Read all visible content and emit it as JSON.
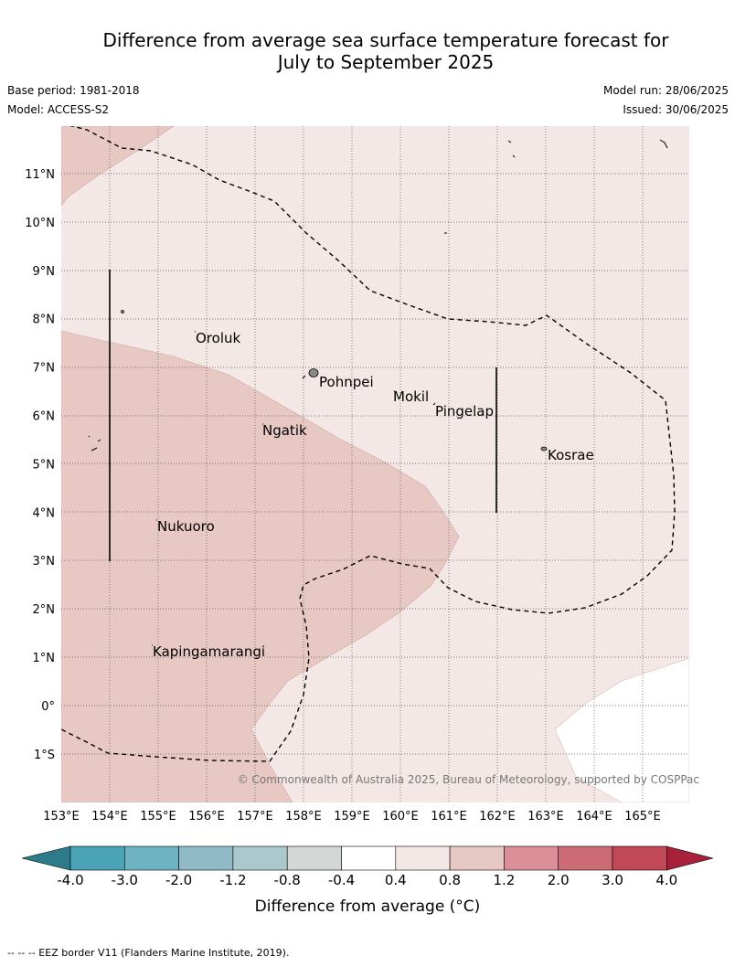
{
  "title": {
    "line1": "Difference from average sea surface temperature forecast for",
    "line2": "July to September 2025"
  },
  "meta": {
    "base_period": "Base period: 1981-2018",
    "model": "Model: ACCESS-S2",
    "model_run": "Model run: 28/06/2025",
    "issued": "Issued: 30/06/2025"
  },
  "map": {
    "lat_labels": [
      "11°N",
      "10°N",
      "9°N",
      "8°N",
      "7°N",
      "6°N",
      "5°N",
      "4°N",
      "3°N",
      "2°N",
      "1°N",
      "0°",
      "1°S"
    ],
    "lon_labels": [
      "153°E",
      "154°E",
      "155°E",
      "156°E",
      "157°E",
      "158°E",
      "159°E",
      "160°E",
      "161°E",
      "162°E",
      "163°E",
      "164°E",
      "165°E"
    ],
    "places": [
      {
        "name": "Oroluk",
        "lon": 155.8,
        "lat": 7.6
      },
      {
        "name": "Pohnpei",
        "lon": 158.3,
        "lat": 6.9
      },
      {
        "name": "Mokil",
        "lon": 159.8,
        "lat": 6.7
      },
      {
        "name": "Pingelap",
        "lon": 160.7,
        "lat": 6.2
      },
      {
        "name": "Ngatik",
        "lon": 157.1,
        "lat": 5.8
      },
      {
        "name": "Kosrae",
        "lon": 163.0,
        "lat": 5.3
      },
      {
        "name": "Nukuoro",
        "lon": 154.9,
        "lat": 3.9
      },
      {
        "name": "Kapingamarangi",
        "lon": 154.8,
        "lat": 1.1
      }
    ],
    "copyright": "© Commonwealth of Australia 2025, Bureau of Meteorology, supported by COSPPac",
    "colors": {
      "light_warm": "#f4e8e6",
      "medium_warm": "#e8c8c3",
      "neutral": "#ffffff"
    }
  },
  "colorbar": {
    "ticks": [
      "-4.0",
      "-3.0",
      "-2.0",
      "-1.2",
      "-0.8",
      "-0.4",
      "0.4",
      "0.8",
      "1.2",
      "2.0",
      "3.0",
      "4.0"
    ],
    "colors": [
      "#2d7b8a",
      "#4aa4b5",
      "#6fb3c2",
      "#8fbac6",
      "#abc9cd",
      "#d3d8d7",
      "#ffffff",
      "#f4e8e6",
      "#e8c8c3",
      "#d98f95",
      "#cc6b74",
      "#c14856",
      "#a8203a"
    ],
    "label": "Difference from average (°C)"
  },
  "footer": "--  --  -- EEZ border V11 (Flanders Marine Institute, 2019)."
}
